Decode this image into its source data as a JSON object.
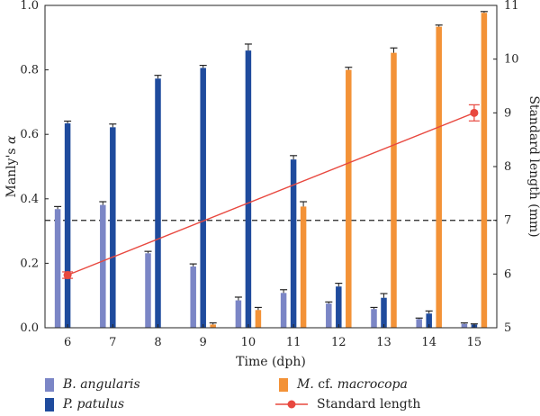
{
  "chart_data": {
    "type": "bar",
    "xlabel": "Time (dph)",
    "ylabel": "Manly's α",
    "ylabel_right": "Standard length (mm)",
    "categories": [
      "6",
      "7",
      "8",
      "9",
      "10",
      "11",
      "12",
      "13",
      "14",
      "15"
    ],
    "ylim": [
      0,
      1.0
    ],
    "yticks": [
      "0.0",
      "0.2",
      "0.4",
      "0.6",
      "0.8",
      "1.0"
    ],
    "ylim_right": [
      5,
      11
    ],
    "yticks_right": [
      "5",
      "6",
      "7",
      "8",
      "9",
      "10",
      "11"
    ],
    "reference_line": {
      "value": 0.333,
      "style": "dashed"
    },
    "series": [
      {
        "name": "B. angularis",
        "color": "#7b86c6",
        "values": [
          0.368,
          0.381,
          0.231,
          0.19,
          0.085,
          0.108,
          0.075,
          0.058,
          0.027,
          0.012
        ],
        "errors": [
          0.008,
          0.01,
          0.006,
          0.008,
          0.01,
          0.01,
          0.005,
          0.005,
          0.003,
          0.003
        ]
      },
      {
        "name": "P. patulus",
        "color": "#1f4b9d",
        "values": [
          0.634,
          0.622,
          0.773,
          0.806,
          0.86,
          0.522,
          0.128,
          0.093,
          0.044,
          0.01
        ],
        "errors": [
          0.007,
          0.01,
          0.01,
          0.008,
          0.02,
          0.012,
          0.01,
          0.013,
          0.008,
          0.002
        ]
      },
      {
        "name": "M. cf. macrocopa",
        "color": "#f39237",
        "values": [
          0,
          0,
          0,
          0.01,
          0.055,
          0.376,
          0.8,
          0.853,
          0.934,
          0.977
        ],
        "errors": [
          0,
          0,
          0,
          0.005,
          0.008,
          0.015,
          0.008,
          0.015,
          0.005,
          0.004
        ]
      }
    ],
    "line_series": {
      "name": "Standard length",
      "color": "#e8483f",
      "axis": "right",
      "x": [
        "6",
        "15"
      ],
      "values": [
        5.98,
        9.0
      ],
      "errors": [
        0.06,
        0.15
      ]
    },
    "legend": {
      "placement": "bottom",
      "items": [
        {
          "name": "B. angularis",
          "kind": "bar",
          "color": "#7b86c6",
          "italic": "all"
        },
        {
          "name": "P. patulus",
          "kind": "bar",
          "color": "#1f4b9d",
          "italic": "all"
        },
        {
          "name": "M. cf. macrocopa",
          "kind": "bar",
          "color": "#f39237",
          "italic": "genus-species"
        },
        {
          "name": "Standard length",
          "kind": "line",
          "color": "#e8483f",
          "italic": "none"
        }
      ]
    }
  }
}
